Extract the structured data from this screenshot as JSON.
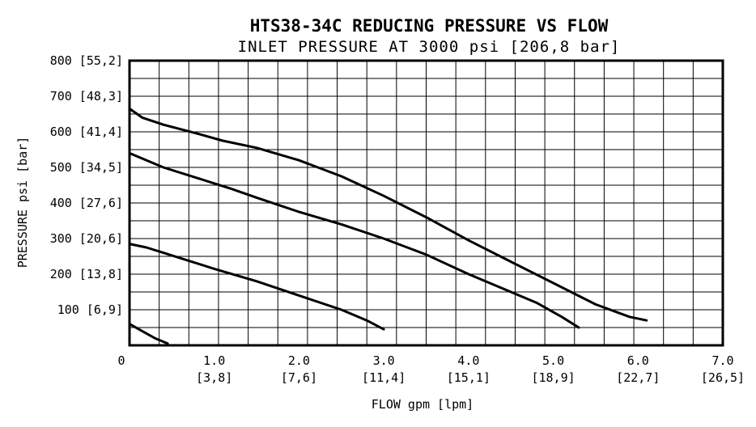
{
  "chart_data": {
    "type": "line",
    "title": "HTS38-34C REDUCING PRESSURE VS FLOW",
    "subtitle": "INLET PRESSURE AT 3000 psi [206,8 bar]",
    "xlabel": "FLOW gpm [lpm]",
    "ylabel": "PRESSURE psi [bar]",
    "xlim": [
      0,
      7
    ],
    "ylim": [
      0,
      800
    ],
    "grid": true,
    "origin_label": "0",
    "x_ticks": [
      {
        "value": 1,
        "label": "1.0",
        "sub": "[3,8]"
      },
      {
        "value": 2,
        "label": "2.0",
        "sub": "[7,6]"
      },
      {
        "value": 3,
        "label": "3.0",
        "sub": "[11,4]"
      },
      {
        "value": 4,
        "label": "4.0",
        "sub": "[15,1]"
      },
      {
        "value": 5,
        "label": "5.0",
        "sub": "[18,9]"
      },
      {
        "value": 6,
        "label": "6.0",
        "sub": "[22,7]"
      },
      {
        "value": 7,
        "label": "7.0",
        "sub": "[26,5]"
      }
    ],
    "y_ticks": [
      {
        "value": 100,
        "label": "100 [6,9]"
      },
      {
        "value": 200,
        "label": "200 [13,8]"
      },
      {
        "value": 300,
        "label": "300 [20,6]"
      },
      {
        "value": 400,
        "label": "400 [27,6]"
      },
      {
        "value": 500,
        "label": "500 [34,5]"
      },
      {
        "value": 600,
        "label": "600 [41,4]"
      },
      {
        "value": 700,
        "label": "700 [48,3]"
      },
      {
        "value": 800,
        "label": "800 [55,2]"
      }
    ],
    "series": [
      {
        "x": [
          0,
          0.15,
          0.4,
          0.8,
          1.1,
          1.5,
          2.0,
          2.5,
          3.0,
          3.5,
          4.0,
          4.5,
          5.0,
          5.5,
          5.9,
          6.1
        ],
        "y": [
          665,
          640,
          620,
          595,
          575,
          555,
          520,
          475,
          420,
          360,
          295,
          235,
          175,
          115,
          80,
          70
        ]
      },
      {
        "x": [
          0,
          0.15,
          0.4,
          0.8,
          1.2,
          1.5,
          2.0,
          2.5,
          3.0,
          3.5,
          4.0,
          4.5,
          4.8,
          5.1,
          5.3
        ],
        "y": [
          540,
          525,
          500,
          470,
          440,
          415,
          375,
          340,
          300,
          255,
          200,
          150,
          120,
          80,
          50
        ]
      },
      {
        "x": [
          0,
          0.2,
          0.4,
          0.6,
          1.0,
          1.5,
          2.0,
          2.5,
          2.8,
          3.0
        ],
        "y": [
          285,
          275,
          260,
          245,
          215,
          180,
          140,
          100,
          70,
          45
        ]
      },
      {
        "x": [
          0,
          0.15,
          0.3,
          0.45
        ],
        "y": [
          60,
          40,
          20,
          5
        ]
      }
    ]
  }
}
